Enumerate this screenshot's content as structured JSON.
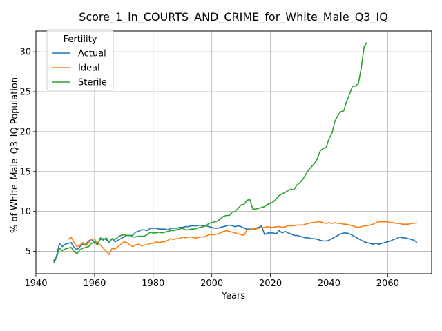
{
  "chart_data": {
    "type": "line",
    "title": "Score_1_in_COURTS_AND_CRIME_for_White_Male_Q3_IQ",
    "xlabel": "Years",
    "ylabel": "% of White_Male_Q3_IQ Population",
    "xlim": [
      1940,
      2075
    ],
    "ylim": [
      2.2,
      32.6
    ],
    "xticks": [
      1940,
      1960,
      1980,
      2000,
      2020,
      2040,
      2060
    ],
    "yticks": [
      5,
      10,
      15,
      20,
      25,
      30
    ],
    "grid": true,
    "legend": {
      "title": "Fertility",
      "placement": "upper left"
    },
    "series": [
      {
        "name": "Actual",
        "color": "#1f77b4",
        "x": [
          1946,
          1947,
          1948,
          1949,
          1950,
          1951,
          1952,
          1953,
          1954,
          1955,
          1956,
          1957,
          1958,
          1959,
          1960,
          1961,
          1962,
          1963,
          1964,
          1965,
          1966,
          1967,
          1968,
          1969,
          1970,
          1971,
          1972,
          1973,
          1974,
          1975,
          1976,
          1977,
          1978,
          1979,
          1980,
          1981,
          1982,
          1983,
          1984,
          1985,
          1986,
          1987,
          1988,
          1989,
          1990,
          1991,
          1992,
          1993,
          1994,
          1995,
          1996,
          1997,
          1998,
          1999,
          2000,
          2001,
          2002,
          2003,
          2004,
          2005,
          2006,
          2007,
          2008,
          2009,
          2010,
          2011,
          2012,
          2013,
          2014,
          2015,
          2016,
          2017,
          2018,
          2019,
          2020,
          2021,
          2022,
          2023,
          2024,
          2025,
          2026,
          2027,
          2028,
          2029,
          2030,
          2031,
          2032,
          2033,
          2034,
          2035,
          2036,
          2037,
          2038,
          2039,
          2040,
          2041,
          2042,
          2043,
          2044,
          2045,
          2046,
          2047,
          2048,
          2049,
          2050,
          2051,
          2052,
          2053,
          2054,
          2055,
          2056,
          2057,
          2058,
          2059,
          2060,
          2061,
          2062,
          2063,
          2064,
          2065,
          2066,
          2067,
          2068,
          2069,
          2070
        ],
        "values": [
          3.8,
          4.4,
          6.0,
          5.6,
          5.9,
          6.0,
          6.1,
          5.5,
          5.2,
          5.6,
          5.9,
          5.9,
          6.3,
          6.5,
          6.2,
          6.0,
          6.5,
          6.6,
          6.5,
          6.1,
          6.6,
          6.2,
          6.4,
          6.6,
          6.8,
          7.0,
          7.0,
          7.0,
          7.4,
          7.5,
          7.7,
          7.7,
          7.6,
          7.9,
          7.9,
          7.9,
          7.8,
          7.8,
          7.8,
          7.7,
          7.9,
          7.9,
          7.9,
          8.0,
          8.0,
          8.1,
          8.1,
          8.2,
          8.2,
          8.2,
          8.3,
          8.2,
          8.2,
          8.1,
          8.0,
          7.9,
          7.9,
          8.0,
          8.1,
          8.2,
          8.3,
          8.2,
          8.1,
          8.2,
          8.1,
          7.9,
          7.8,
          7.8,
          7.8,
          7.9,
          8.0,
          8.2,
          7.1,
          7.3,
          7.3,
          7.3,
          7.2,
          7.6,
          7.3,
          7.5,
          7.3,
          7.2,
          7.0,
          7.0,
          6.9,
          6.8,
          6.7,
          6.7,
          6.6,
          6.6,
          6.5,
          6.4,
          6.3,
          6.3,
          6.4,
          6.6,
          6.8,
          7.0,
          7.2,
          7.3,
          7.3,
          7.2,
          7.0,
          6.8,
          6.6,
          6.4,
          6.2,
          6.1,
          6.0,
          5.9,
          6.0,
          5.9,
          6.0,
          6.1,
          6.2,
          6.3,
          6.5,
          6.6,
          6.8,
          6.7,
          6.7,
          6.6,
          6.5,
          6.4,
          6.1
        ]
      },
      {
        "name": "Ideal",
        "color": "#ff7f0e",
        "x": [
          1951,
          1952,
          1953,
          1954,
          1955,
          1956,
          1957,
          1958,
          1959,
          1960,
          1961,
          1962,
          1963,
          1964,
          1965,
          1966,
          1967,
          1968,
          1969,
          1970,
          1971,
          1972,
          1973,
          1974,
          1975,
          1976,
          1977,
          1978,
          1979,
          1980,
          1981,
          1982,
          1983,
          1984,
          1985,
          1986,
          1987,
          1988,
          1989,
          1990,
          1991,
          1992,
          1993,
          1994,
          1995,
          1996,
          1997,
          1998,
          1999,
          2000,
          2001,
          2002,
          2003,
          2004,
          2005,
          2006,
          2007,
          2008,
          2009,
          2010,
          2011,
          2012,
          2013,
          2014,
          2015,
          2016,
          2017,
          2018,
          2019,
          2020,
          2021,
          2022,
          2023,
          2024,
          2025,
          2026,
          2027,
          2028,
          2029,
          2030,
          2031,
          2032,
          2033,
          2034,
          2035,
          2036,
          2037,
          2038,
          2039,
          2040,
          2041,
          2042,
          2043,
          2044,
          2045,
          2046,
          2047,
          2048,
          2049,
          2050,
          2051,
          2052,
          2053,
          2054,
          2055,
          2056,
          2057,
          2058,
          2059,
          2060,
          2061,
          2062,
          2063,
          2064,
          2065,
          2066,
          2067,
          2068,
          2069,
          2070
        ],
        "values": [
          6.5,
          6.8,
          6.1,
          5.6,
          5.8,
          6.1,
          5.7,
          6.1,
          6.5,
          6.6,
          6.0,
          5.8,
          5.4,
          5.0,
          4.6,
          5.4,
          5.3,
          5.6,
          5.9,
          6.2,
          6.1,
          5.8,
          5.6,
          5.8,
          5.9,
          5.7,
          5.8,
          5.8,
          6.0,
          6.0,
          6.2,
          6.1,
          6.2,
          6.2,
          6.4,
          6.6,
          6.5,
          6.6,
          6.6,
          6.8,
          6.7,
          6.8,
          6.8,
          6.7,
          6.7,
          6.8,
          6.8,
          6.9,
          7.1,
          7.1,
          7.1,
          7.2,
          7.3,
          7.5,
          7.6,
          7.5,
          7.4,
          7.3,
          7.2,
          7.1,
          7.0,
          7.7,
          7.7,
          7.8,
          7.8,
          7.9,
          8.0,
          8.0,
          8.1,
          8.0,
          8.0,
          8.1,
          8.1,
          8.0,
          8.1,
          8.2,
          8.2,
          8.2,
          8.3,
          8.3,
          8.3,
          8.4,
          8.5,
          8.6,
          8.6,
          8.7,
          8.7,
          8.6,
          8.5,
          8.6,
          8.5,
          8.6,
          8.5,
          8.5,
          8.4,
          8.4,
          8.3,
          8.2,
          8.1,
          8.0,
          8.1,
          8.2,
          8.2,
          8.3,
          8.4,
          8.6,
          8.7,
          8.7,
          8.7,
          8.7,
          8.6,
          8.6,
          8.5,
          8.5,
          8.4,
          8.4,
          8.4,
          8.5,
          8.5,
          8.6
        ]
      },
      {
        "name": "Sterile",
        "color": "#2ca02c",
        "x": [
          1946,
          1947,
          1948,
          1949,
          1950,
          1951,
          1952,
          1953,
          1954,
          1955,
          1956,
          1957,
          1958,
          1959,
          1960,
          1961,
          1962,
          1963,
          1964,
          1965,
          1966,
          1967,
          1968,
          1969,
          1970,
          1971,
          1972,
          1973,
          1974,
          1975,
          1976,
          1977,
          1978,
          1979,
          1980,
          1981,
          1982,
          1983,
          1984,
          1985,
          1986,
          1987,
          1988,
          1989,
          1990,
          1991,
          1992,
          1993,
          1994,
          1995,
          1996,
          1997,
          1998,
          1999,
          2000,
          2001,
          2002,
          2003,
          2004,
          2005,
          2006,
          2007,
          2008,
          2009,
          2010,
          2011,
          2012,
          2013,
          2014,
          2015,
          2016,
          2017,
          2018,
          2019,
          2020,
          2021,
          2022,
          2023,
          2024,
          2025,
          2026,
          2027,
          2028,
          2029,
          2030,
          2031,
          2032,
          2033,
          2034,
          2035,
          2036,
          2037,
          2038,
          2039,
          2040,
          2041,
          2042,
          2043,
          2044,
          2045,
          2046,
          2047,
          2048,
          2049,
          2050,
          2051,
          2052,
          2053
        ],
        "values": [
          3.5,
          4.2,
          5.4,
          5.1,
          5.3,
          5.4,
          5.5,
          5.0,
          4.7,
          5.2,
          5.4,
          5.5,
          5.6,
          6.0,
          6.2,
          5.8,
          6.7,
          6.4,
          6.7,
          6.2,
          6.6,
          6.5,
          6.8,
          7.0,
          7.1,
          7.0,
          7.0,
          6.8,
          6.8,
          6.9,
          6.9,
          6.9,
          7.1,
          7.4,
          7.3,
          7.3,
          7.4,
          7.3,
          7.4,
          7.5,
          7.6,
          7.6,
          7.7,
          7.8,
          7.9,
          7.7,
          7.7,
          7.8,
          7.8,
          7.9,
          8.0,
          8.1,
          8.2,
          8.5,
          8.6,
          8.7,
          8.8,
          9.1,
          9.4,
          9.5,
          9.5,
          9.9,
          10.0,
          10.4,
          10.8,
          10.9,
          11.4,
          11.5,
          10.3,
          10.3,
          10.4,
          10.5,
          10.6,
          10.9,
          11.0,
          11.2,
          11.6,
          12.0,
          12.2,
          12.4,
          12.6,
          12.8,
          12.7,
          13.3,
          13.6,
          14.0,
          14.6,
          15.2,
          15.6,
          16.0,
          16.6,
          17.6,
          17.9,
          18.0,
          19.1,
          19.8,
          21.3,
          22.0,
          22.5,
          22.6,
          23.8,
          24.7,
          25.7,
          25.7,
          26.0,
          28.0,
          30.7,
          31.2
        ]
      }
    ]
  }
}
